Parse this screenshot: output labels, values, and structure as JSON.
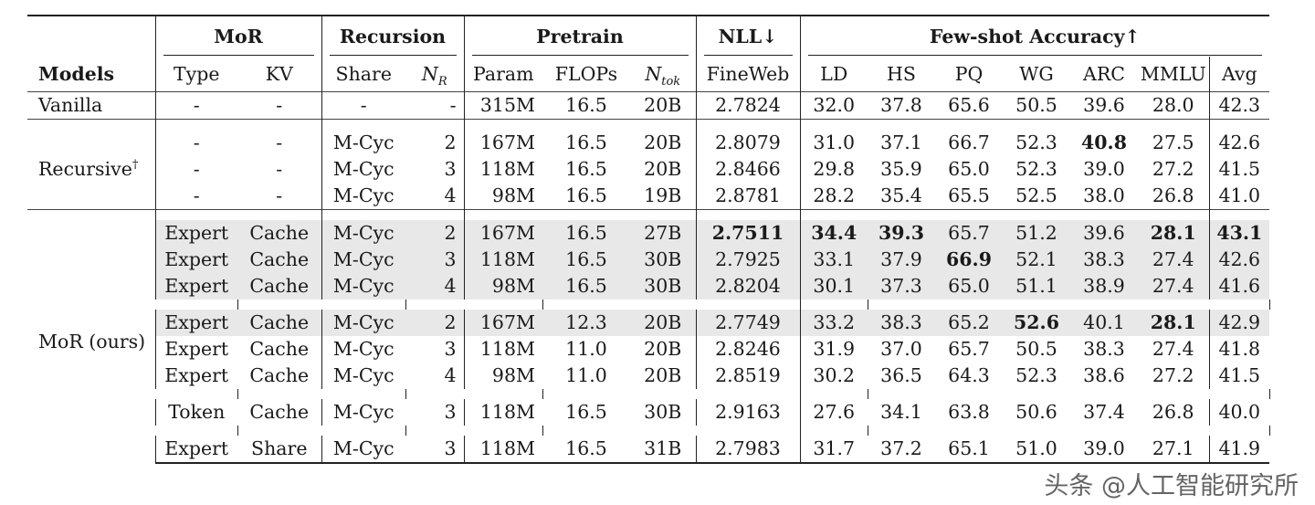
{
  "header": {
    "groups": {
      "mor": "MoR",
      "recursion": "Recursion",
      "pretrain": "Pretrain",
      "nll": "NLL↓",
      "fewshot": "Few-shot Accuracy↑"
    },
    "cols": {
      "models": "Models",
      "type": "Type",
      "kv": "KV",
      "share": "Share",
      "nr_base": "N",
      "nr_sub": "R",
      "param": "Param",
      "flops": "FLOPs",
      "ntok_base": "N",
      "ntok_sub": "tok",
      "fineweb": "FineWeb",
      "ld": "LD",
      "hs": "HS",
      "pq": "PQ",
      "wg": "WG",
      "arc": "ARC",
      "mmlu": "MMLU",
      "avg": "Avg"
    }
  },
  "groups": {
    "vanilla": "Vanilla",
    "recursive": "Recursive",
    "recursive_mark": "†",
    "mor": "MoR (ours)"
  },
  "rows": [
    [
      "-",
      "-",
      "-",
      "-",
      "315M",
      "16.5",
      "20B",
      "2.7824",
      "32.0",
      "37.8",
      "65.6",
      "50.5",
      "39.6",
      "28.0",
      "42.3"
    ],
    [
      "-",
      "-",
      "M-Cyc",
      "2",
      "167M",
      "16.5",
      "20B",
      "2.8079",
      "31.0",
      "37.1",
      "66.7",
      "52.3",
      "40.8",
      "27.5",
      "42.6"
    ],
    [
      "-",
      "-",
      "M-Cyc",
      "3",
      "118M",
      "16.5",
      "20B",
      "2.8466",
      "29.8",
      "35.9",
      "65.0",
      "52.3",
      "39.0",
      "27.2",
      "41.5"
    ],
    [
      "-",
      "-",
      "M-Cyc",
      "4",
      "98M",
      "16.5",
      "19B",
      "2.8781",
      "28.2",
      "35.4",
      "65.5",
      "52.5",
      "38.0",
      "26.8",
      "41.0"
    ],
    [
      "Expert",
      "Cache",
      "M-Cyc",
      "2",
      "167M",
      "16.5",
      "27B",
      "2.7511",
      "34.4",
      "39.3",
      "65.7",
      "51.2",
      "39.6",
      "28.1",
      "43.1"
    ],
    [
      "Expert",
      "Cache",
      "M-Cyc",
      "3",
      "118M",
      "16.5",
      "30B",
      "2.7925",
      "33.1",
      "37.9",
      "66.9",
      "52.1",
      "38.3",
      "27.4",
      "42.6"
    ],
    [
      "Expert",
      "Cache",
      "M-Cyc",
      "4",
      "98M",
      "16.5",
      "30B",
      "2.8204",
      "30.1",
      "37.3",
      "65.0",
      "51.1",
      "38.9",
      "27.4",
      "41.6"
    ],
    [
      "Expert",
      "Cache",
      "M-Cyc",
      "2",
      "167M",
      "12.3",
      "20B",
      "2.7749",
      "33.2",
      "38.3",
      "65.2",
      "52.6",
      "40.1",
      "28.1",
      "42.9"
    ],
    [
      "Expert",
      "Cache",
      "M-Cyc",
      "3",
      "118M",
      "11.0",
      "20B",
      "2.8246",
      "31.9",
      "37.0",
      "65.7",
      "50.5",
      "38.3",
      "27.4",
      "41.8"
    ],
    [
      "Expert",
      "Cache",
      "M-Cyc",
      "4",
      "98M",
      "11.0",
      "20B",
      "2.8519",
      "30.2",
      "36.5",
      "64.3",
      "52.3",
      "38.6",
      "27.2",
      "41.5"
    ],
    [
      "Token",
      "Cache",
      "M-Cyc",
      "3",
      "118M",
      "16.5",
      "30B",
      "2.9163",
      "27.6",
      "34.1",
      "63.8",
      "50.6",
      "37.4",
      "26.8",
      "40.0"
    ],
    [
      "Expert",
      "Share",
      "M-Cyc",
      "3",
      "118M",
      "16.5",
      "31B",
      "2.7983",
      "31.7",
      "37.2",
      "65.1",
      "51.0",
      "39.0",
      "27.1",
      "41.9"
    ]
  ],
  "bold_cells": [
    [
      1,
      12
    ],
    [
      4,
      7
    ],
    [
      4,
      8
    ],
    [
      4,
      9
    ],
    [
      4,
      13
    ],
    [
      4,
      14
    ],
    [
      5,
      10
    ],
    [
      7,
      11
    ],
    [
      7,
      13
    ]
  ],
  "shaded_rows": [
    4,
    5,
    6,
    7
  ],
  "watermark": "头条 @人工智能研究所"
}
